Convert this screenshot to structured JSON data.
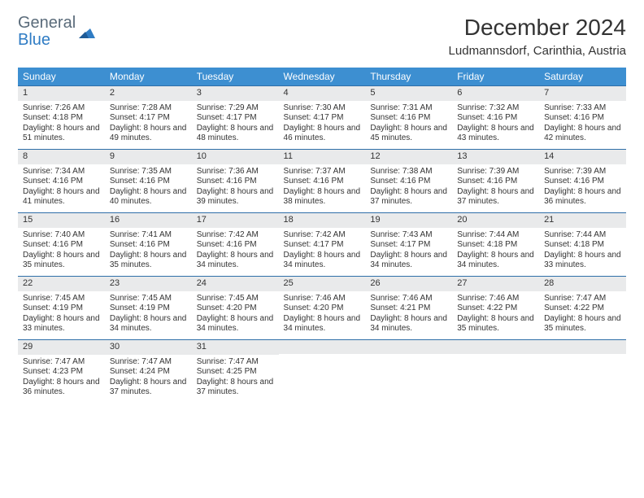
{
  "brand": {
    "line1": "General",
    "line2": "Blue"
  },
  "title": "December 2024",
  "location": "Ludmannsdorf, Carinthia, Austria",
  "colors": {
    "header_bg": "#3d8fd1",
    "header_text": "#ffffff",
    "daynum_bg": "#e9eaeb",
    "rule": "#2f6fa8",
    "brand_gray": "#5a6b7a",
    "brand_blue": "#2f7cc4"
  },
  "weekdays": [
    "Sunday",
    "Monday",
    "Tuesday",
    "Wednesday",
    "Thursday",
    "Friday",
    "Saturday"
  ],
  "weeks": [
    [
      {
        "day": "1",
        "sunrise": "Sunrise: 7:26 AM",
        "sunset": "Sunset: 4:18 PM",
        "daylight": "Daylight: 8 hours and 51 minutes."
      },
      {
        "day": "2",
        "sunrise": "Sunrise: 7:28 AM",
        "sunset": "Sunset: 4:17 PM",
        "daylight": "Daylight: 8 hours and 49 minutes."
      },
      {
        "day": "3",
        "sunrise": "Sunrise: 7:29 AM",
        "sunset": "Sunset: 4:17 PM",
        "daylight": "Daylight: 8 hours and 48 minutes."
      },
      {
        "day": "4",
        "sunrise": "Sunrise: 7:30 AM",
        "sunset": "Sunset: 4:17 PM",
        "daylight": "Daylight: 8 hours and 46 minutes."
      },
      {
        "day": "5",
        "sunrise": "Sunrise: 7:31 AM",
        "sunset": "Sunset: 4:16 PM",
        "daylight": "Daylight: 8 hours and 45 minutes."
      },
      {
        "day": "6",
        "sunrise": "Sunrise: 7:32 AM",
        "sunset": "Sunset: 4:16 PM",
        "daylight": "Daylight: 8 hours and 43 minutes."
      },
      {
        "day": "7",
        "sunrise": "Sunrise: 7:33 AM",
        "sunset": "Sunset: 4:16 PM",
        "daylight": "Daylight: 8 hours and 42 minutes."
      }
    ],
    [
      {
        "day": "8",
        "sunrise": "Sunrise: 7:34 AM",
        "sunset": "Sunset: 4:16 PM",
        "daylight": "Daylight: 8 hours and 41 minutes."
      },
      {
        "day": "9",
        "sunrise": "Sunrise: 7:35 AM",
        "sunset": "Sunset: 4:16 PM",
        "daylight": "Daylight: 8 hours and 40 minutes."
      },
      {
        "day": "10",
        "sunrise": "Sunrise: 7:36 AM",
        "sunset": "Sunset: 4:16 PM",
        "daylight": "Daylight: 8 hours and 39 minutes."
      },
      {
        "day": "11",
        "sunrise": "Sunrise: 7:37 AM",
        "sunset": "Sunset: 4:16 PM",
        "daylight": "Daylight: 8 hours and 38 minutes."
      },
      {
        "day": "12",
        "sunrise": "Sunrise: 7:38 AM",
        "sunset": "Sunset: 4:16 PM",
        "daylight": "Daylight: 8 hours and 37 minutes."
      },
      {
        "day": "13",
        "sunrise": "Sunrise: 7:39 AM",
        "sunset": "Sunset: 4:16 PM",
        "daylight": "Daylight: 8 hours and 37 minutes."
      },
      {
        "day": "14",
        "sunrise": "Sunrise: 7:39 AM",
        "sunset": "Sunset: 4:16 PM",
        "daylight": "Daylight: 8 hours and 36 minutes."
      }
    ],
    [
      {
        "day": "15",
        "sunrise": "Sunrise: 7:40 AM",
        "sunset": "Sunset: 4:16 PM",
        "daylight": "Daylight: 8 hours and 35 minutes."
      },
      {
        "day": "16",
        "sunrise": "Sunrise: 7:41 AM",
        "sunset": "Sunset: 4:16 PM",
        "daylight": "Daylight: 8 hours and 35 minutes."
      },
      {
        "day": "17",
        "sunrise": "Sunrise: 7:42 AM",
        "sunset": "Sunset: 4:16 PM",
        "daylight": "Daylight: 8 hours and 34 minutes."
      },
      {
        "day": "18",
        "sunrise": "Sunrise: 7:42 AM",
        "sunset": "Sunset: 4:17 PM",
        "daylight": "Daylight: 8 hours and 34 minutes."
      },
      {
        "day": "19",
        "sunrise": "Sunrise: 7:43 AM",
        "sunset": "Sunset: 4:17 PM",
        "daylight": "Daylight: 8 hours and 34 minutes."
      },
      {
        "day": "20",
        "sunrise": "Sunrise: 7:44 AM",
        "sunset": "Sunset: 4:18 PM",
        "daylight": "Daylight: 8 hours and 34 minutes."
      },
      {
        "day": "21",
        "sunrise": "Sunrise: 7:44 AM",
        "sunset": "Sunset: 4:18 PM",
        "daylight": "Daylight: 8 hours and 33 minutes."
      }
    ],
    [
      {
        "day": "22",
        "sunrise": "Sunrise: 7:45 AM",
        "sunset": "Sunset: 4:19 PM",
        "daylight": "Daylight: 8 hours and 33 minutes."
      },
      {
        "day": "23",
        "sunrise": "Sunrise: 7:45 AM",
        "sunset": "Sunset: 4:19 PM",
        "daylight": "Daylight: 8 hours and 34 minutes."
      },
      {
        "day": "24",
        "sunrise": "Sunrise: 7:45 AM",
        "sunset": "Sunset: 4:20 PM",
        "daylight": "Daylight: 8 hours and 34 minutes."
      },
      {
        "day": "25",
        "sunrise": "Sunrise: 7:46 AM",
        "sunset": "Sunset: 4:20 PM",
        "daylight": "Daylight: 8 hours and 34 minutes."
      },
      {
        "day": "26",
        "sunrise": "Sunrise: 7:46 AM",
        "sunset": "Sunset: 4:21 PM",
        "daylight": "Daylight: 8 hours and 34 minutes."
      },
      {
        "day": "27",
        "sunrise": "Sunrise: 7:46 AM",
        "sunset": "Sunset: 4:22 PM",
        "daylight": "Daylight: 8 hours and 35 minutes."
      },
      {
        "day": "28",
        "sunrise": "Sunrise: 7:47 AM",
        "sunset": "Sunset: 4:22 PM",
        "daylight": "Daylight: 8 hours and 35 minutes."
      }
    ],
    [
      {
        "day": "29",
        "sunrise": "Sunrise: 7:47 AM",
        "sunset": "Sunset: 4:23 PM",
        "daylight": "Daylight: 8 hours and 36 minutes."
      },
      {
        "day": "30",
        "sunrise": "Sunrise: 7:47 AM",
        "sunset": "Sunset: 4:24 PM",
        "daylight": "Daylight: 8 hours and 37 minutes."
      },
      {
        "day": "31",
        "sunrise": "Sunrise: 7:47 AM",
        "sunset": "Sunset: 4:25 PM",
        "daylight": "Daylight: 8 hours and 37 minutes."
      },
      null,
      null,
      null,
      null
    ]
  ]
}
